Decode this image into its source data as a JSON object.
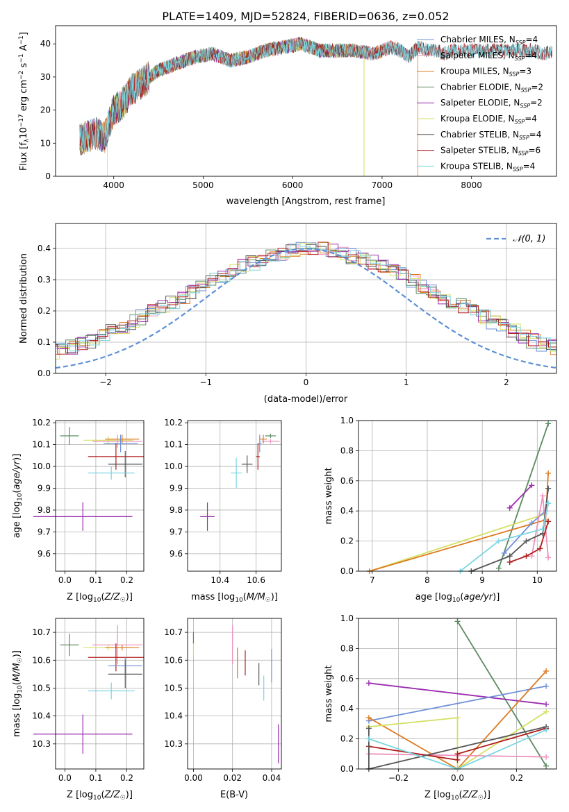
{
  "figure_title": "PLATE=1409, MJD=52824, FIBERID=0636, z=0.052",
  "colors": {
    "Chabrier MILES": "#6e8fd8",
    "Salpeter MILES": "#ee90bb",
    "Kroupa MILES": "#dd7a22",
    "Chabrier ELODIE": "#5a8a5f",
    "Salpeter ELODIE": "#9a2bb0",
    "Kroupa ELODIE": "#d4e060",
    "Chabrier STELIB": "#555555",
    "Salpeter STELIB": "#b01c1c",
    "Kroupa STELIB": "#7ad6e2",
    "normal": "#5b8fd6"
  },
  "chart_data": [
    {
      "id": "spectrum",
      "type": "line",
      "title": "PLATE=1409, MJD=52824, FIBERID=0636, z=0.052",
      "xlabel": "wavelength [Angstrom, rest frame]",
      "ylabel": "Flux [f_λ10^-17 erg cm^-2 s^-1 A^-1]",
      "xlim": [
        3350,
        8950
      ],
      "ylim": [
        0,
        45.5
      ],
      "xticks": [
        4000,
        5000,
        6000,
        7000,
        8000
      ],
      "yticks": [
        0,
        10,
        20,
        30,
        40
      ],
      "grid": false,
      "legend_position": "top-right",
      "continuum": {
        "x": [
          3620,
          3700,
          3800,
          3900,
          3950,
          4000,
          4100,
          4200,
          4300,
          4400,
          4500,
          4700,
          4900,
          5100,
          5300,
          5500,
          5700,
          5900,
          6100,
          6300,
          6500,
          6700,
          6900,
          7000,
          7100,
          7200,
          7300,
          7400,
          7500,
          7600,
          7700,
          7800,
          7900,
          8000,
          8100,
          8200,
          8300,
          8400,
          8500,
          8600,
          8700,
          8800,
          8900
        ],
        "y": [
          11,
          12,
          13,
          12,
          16,
          20,
          22,
          26,
          28,
          30,
          32,
          34,
          36,
          37,
          35,
          36,
          38,
          39,
          40,
          38,
          38,
          38,
          37,
          38,
          39,
          38,
          36,
          39,
          38,
          38,
          37,
          38,
          38,
          38,
          38,
          38,
          38,
          38,
          38,
          38,
          38,
          37,
          38
        ]
      },
      "series": [
        {
          "name": "Chabrier MILES",
          "nssp": "4",
          "xmax": 7400
        },
        {
          "name": "Salpeter MILES",
          "nssp": "4",
          "xmax": 7400
        },
        {
          "name": "Kroupa MILES",
          "nssp": "3",
          "xmax": 7400
        },
        {
          "name": "Chabrier ELODIE",
          "nssp": "2",
          "xmax": 6800
        },
        {
          "name": "Salpeter ELODIE",
          "nssp": "2",
          "xmax": 6800
        },
        {
          "name": "Kroupa ELODIE",
          "nssp": "4",
          "xmax": 6800
        },
        {
          "name": "Chabrier STELIB",
          "nssp": "4",
          "xmax": 8900
        },
        {
          "name": "Salpeter STELIB",
          "nssp": "6",
          "xmax": 8900
        },
        {
          "name": "Kroupa STELIB",
          "nssp": "4",
          "xmax": 8900
        }
      ]
    },
    {
      "id": "residuals",
      "type": "line",
      "xlabel": "(data-model)/error",
      "ylabel": "Normed distribution",
      "xlim": [
        -2.5,
        2.5
      ],
      "ylim": [
        0,
        0.48
      ],
      "xticks": [
        -2,
        -1,
        0,
        1,
        2
      ],
      "yticks": [
        0.0,
        0.1,
        0.2,
        0.3,
        0.4
      ],
      "grid": true,
      "legend_position": "top-right",
      "legend": "N(0,1)",
      "bin_width": 0.1,
      "histogram": [
        0.02,
        0.025,
        0.03,
        0.035,
        0.04,
        0.045,
        0.05,
        0.055,
        0.06,
        0.07,
        0.075,
        0.085,
        0.095,
        0.105,
        0.12,
        0.135,
        0.15,
        0.165,
        0.18,
        0.2,
        0.215,
        0.23,
        0.245,
        0.26,
        0.28,
        0.3,
        0.315,
        0.33,
        0.345,
        0.355,
        0.365,
        0.375,
        0.385,
        0.39,
        0.395,
        0.4,
        0.395,
        0.39,
        0.385,
        0.375,
        0.365,
        0.355,
        0.345,
        0.33,
        0.315,
        0.3,
        0.28,
        0.26,
        0.245,
        0.23,
        0.215,
        0.2,
        0.18,
        0.165,
        0.15,
        0.135,
        0.12,
        0.105,
        0.095,
        0.085,
        0.075,
        0.07,
        0.06,
        0.055,
        0.05,
        0.045,
        0.04,
        0.035,
        0.03,
        0.025,
        0.02
      ]
    },
    {
      "id": "age_vs_Z",
      "type": "scatter",
      "xlabel": "Z [log10(Z/Z☉)]",
      "ylabel": "age  [log10(age/yr)]",
      "xlim": [
        -0.03,
        0.255
      ],
      "ylim": [
        9.52,
        10.21
      ],
      "xticks": [
        0.0,
        0.1,
        0.2
      ],
      "yticks": [
        9.6,
        9.7,
        9.8,
        9.9,
        10.0,
        10.1,
        10.2
      ],
      "grid": true,
      "points": [
        {
          "series": "Chabrier ELODIE",
          "x": 0.015,
          "y": 10.14,
          "xerr": 0.03,
          "yerr": 0.04
        },
        {
          "series": "Kroupa ELODIE",
          "x": 0.14,
          "y": 10.12,
          "xerr": 0.08,
          "yerr": 0.02
        },
        {
          "series": "Salpeter MILES",
          "x": 0.17,
          "y": 10.115,
          "xerr": 0.08,
          "yerr": 0.03
        },
        {
          "series": "Kroupa MILES",
          "x": 0.185,
          "y": 10.125,
          "xerr": 0.055,
          "yerr": 0.02
        },
        {
          "series": "Chabrier MILES",
          "x": 0.18,
          "y": 10.105,
          "xerr": 0.055,
          "yerr": 0.04
        },
        {
          "series": "Salpeter STELIB",
          "x": 0.165,
          "y": 10.045,
          "xerr": 0.09,
          "yerr": 0.06
        },
        {
          "series": "Chabrier STELIB",
          "x": 0.195,
          "y": 10.01,
          "xerr": 0.055,
          "yerr": 0.06
        },
        {
          "series": "Kroupa STELIB",
          "x": 0.15,
          "y": 9.97,
          "xerr": 0.075,
          "yerr": 0.03
        },
        {
          "series": "Salpeter ELODIE",
          "x": 0.058,
          "y": 9.77,
          "xerr": 0.16,
          "yerr": 0.065
        }
      ]
    },
    {
      "id": "age_vs_mass",
      "type": "scatter",
      "xlabel": "mass [log10(M/M☉)]",
      "ylabel": "",
      "xlim": [
        10.22,
        10.74
      ],
      "ylim": [
        9.52,
        10.21
      ],
      "xticks": [
        10.4,
        10.6
      ],
      "yticks": [
        9.6,
        9.7,
        9.8,
        9.9,
        10.0,
        10.1,
        10.2
      ],
      "grid": true,
      "points": [
        {
          "series": "Chabrier ELODIE",
          "x": 10.68,
          "y": 10.14,
          "xerr": 0.03,
          "yerr": 0.01
        },
        {
          "series": "Salpeter MILES",
          "x": 10.68,
          "y": 10.115,
          "xerr": 0.05,
          "yerr": 0.01
        },
        {
          "series": "Kroupa MILES",
          "x": 10.64,
          "y": 10.125,
          "xerr": 0.02,
          "yerr": 0.02
        },
        {
          "series": "Chabrier MILES",
          "x": 10.62,
          "y": 10.105,
          "xerr": 0.01,
          "yerr": 0.04
        },
        {
          "series": "Salpeter STELIB",
          "x": 10.61,
          "y": 10.045,
          "xerr": 0.01,
          "yerr": 0.06
        },
        {
          "series": "Chabrier STELIB",
          "x": 10.55,
          "y": 10.01,
          "xerr": 0.03,
          "yerr": 0.04
        },
        {
          "series": "Kroupa STELIB",
          "x": 10.49,
          "y": 9.97,
          "xerr": 0.03,
          "yerr": 0.07
        },
        {
          "series": "Salpeter ELODIE",
          "x": 10.33,
          "y": 9.77,
          "xerr": 0.04,
          "yerr": 0.065
        }
      ]
    },
    {
      "id": "weight_vs_age",
      "type": "line",
      "xlabel": "age  [log10(age/yr)]",
      "ylabel": "mass weight",
      "xlim": [
        6.75,
        10.35
      ],
      "ylim": [
        0,
        1.0
      ],
      "xticks": [
        7,
        8,
        9,
        10
      ],
      "yticks": [
        0.0,
        0.2,
        0.4,
        0.6,
        0.8,
        1.0
      ],
      "grid": true,
      "series": [
        {
          "name": "Chabrier ELODIE",
          "x": [
            9.3,
            10.2
          ],
          "y": [
            0.02,
            0.98
          ]
        },
        {
          "name": "Salpeter ELODIE",
          "x": [
            9.5,
            9.9
          ],
          "y": [
            0.42,
            0.57
          ]
        },
        {
          "name": "Kroupa ELODIE",
          "x": [
            6.95,
            10.15
          ],
          "y": [
            0.0,
            0.38
          ]
        },
        {
          "name": "Kroupa MILES",
          "x": [
            6.95,
            10.15,
            10.2
          ],
          "y": [
            0.0,
            0.34,
            0.65
          ]
        },
        {
          "name": "Chabrier MILES",
          "x": [
            9.4,
            9.9,
            10.15,
            10.2
          ],
          "y": [
            0.12,
            0.32,
            0.4,
            0.55
          ]
        },
        {
          "name": "Salpeter MILES",
          "x": [
            9.9,
            10.1,
            10.2
          ],
          "y": [
            0.1,
            0.5,
            0.09
          ]
        },
        {
          "name": "Chabrier STELIB",
          "x": [
            8.8,
            9.5,
            9.8,
            10.1,
            10.2
          ],
          "y": [
            0.0,
            0.1,
            0.2,
            0.25,
            0.55
          ]
        },
        {
          "name": "Salpeter STELIB",
          "x": [
            9.5,
            9.8,
            10.05,
            10.2
          ],
          "y": [
            0.06,
            0.1,
            0.15,
            0.33
          ]
        },
        {
          "name": "Kroupa STELIB",
          "x": [
            8.6,
            9.3,
            10.1,
            10.2
          ],
          "y": [
            0.0,
            0.2,
            0.28,
            0.45
          ]
        }
      ]
    },
    {
      "id": "mass_vs_Z",
      "type": "scatter",
      "xlabel": "Z [log10(Z/Z☉)]",
      "ylabel": "mass [log10(M/M☉)]",
      "xlim": [
        -0.03,
        0.255
      ],
      "ylim": [
        10.21,
        10.75
      ],
      "xticks": [
        0.0,
        0.1,
        0.2
      ],
      "yticks": [
        10.3,
        10.4,
        10.5,
        10.6,
        10.7
      ],
      "grid": true,
      "points": [
        {
          "series": "Chabrier ELODIE",
          "x": 0.015,
          "y": 10.655,
          "xerr": 0.03,
          "yerr": 0.04
        },
        {
          "series": "Kroupa ELODIE",
          "x": 0.14,
          "y": 10.645,
          "xerr": 0.08,
          "yerr": 0.01
        },
        {
          "series": "Salpeter MILES",
          "x": 0.17,
          "y": 10.655,
          "xerr": 0.08,
          "yerr": 0.07
        },
        {
          "series": "Kroupa MILES",
          "x": 0.185,
          "y": 10.645,
          "xerr": 0.055,
          "yerr": 0.01
        },
        {
          "series": "Salpeter STELIB",
          "x": 0.165,
          "y": 10.61,
          "xerr": 0.09,
          "yerr": 0.05
        },
        {
          "series": "Chabrier MILES",
          "x": 0.195,
          "y": 10.58,
          "xerr": 0.055,
          "yerr": 0.03
        },
        {
          "series": "Chabrier STELIB",
          "x": 0.195,
          "y": 10.55,
          "xerr": 0.055,
          "yerr": 0.05
        },
        {
          "series": "Kroupa STELIB",
          "x": 0.15,
          "y": 10.49,
          "xerr": 0.075,
          "yerr": 0.03
        },
        {
          "series": "Salpeter ELODIE",
          "x": 0.058,
          "y": 10.335,
          "xerr": 0.16,
          "yerr": 0.07
        }
      ]
    },
    {
      "id": "mass_vs_ebv",
      "type": "scatter",
      "xlabel": "E(B-V)",
      "ylabel": "",
      "xlim": [
        -0.003,
        0.045
      ],
      "ylim": [
        10.21,
        10.75
      ],
      "xticks": [
        0.0,
        0.02,
        0.04
      ],
      "yticks": [
        10.3,
        10.4,
        10.5,
        10.6,
        10.7
      ],
      "grid": true,
      "points": [
        {
          "series": "Chabrier ELODIE",
          "x": 0.0,
          "y": 10.68,
          "yerr": 0.02
        },
        {
          "series": "Kroupa ELODIE",
          "x": 0.0,
          "y": 10.64,
          "yerr": 0.02
        },
        {
          "series": "Salpeter MILES",
          "x": 0.02,
          "y": 10.655,
          "yerr": 0.07
        },
        {
          "series": "Kroupa MILES",
          "x": 0.0225,
          "y": 10.59,
          "yerr": 0.055
        },
        {
          "series": "Salpeter STELIB",
          "x": 0.0265,
          "y": 10.59,
          "yerr": 0.045
        },
        {
          "series": "Chabrier STELIB",
          "x": 0.0335,
          "y": 10.55,
          "yerr": 0.04
        },
        {
          "series": "Kroupa STELIB",
          "x": 0.036,
          "y": 10.5,
          "yerr": 0.045
        },
        {
          "series": "Chabrier MILES",
          "x": 0.04,
          "y": 10.58,
          "yerr": 0.06
        },
        {
          "series": "Salpeter ELODIE",
          "x": 0.0435,
          "y": 10.3,
          "yerr": 0.07
        }
      ]
    },
    {
      "id": "weight_vs_Z",
      "type": "line",
      "xlabel": "Z [log10(Z/Z☉)]",
      "ylabel": "mass weight",
      "xlim": [
        -0.335,
        0.335
      ],
      "ylim": [
        0,
        1.0
      ],
      "xticks": [
        -0.2,
        0.0,
        0.2
      ],
      "yticks": [
        0.0,
        0.2,
        0.4,
        0.6,
        0.8,
        1.0
      ],
      "grid": true,
      "series": [
        {
          "name": "Chabrier ELODIE",
          "x": [
            0.0,
            0.3
          ],
          "y": [
            0.98,
            0.02
          ]
        },
        {
          "name": "Salpeter ELODIE",
          "x": [
            -0.3,
            0.3
          ],
          "y": [
            0.57,
            0.43
          ]
        },
        {
          "name": "Chabrier MILES",
          "x": [
            -0.3,
            0.3
          ],
          "y": [
            0.32,
            0.55
          ]
        },
        {
          "name": "Kroupa MILES",
          "x": [
            -0.3,
            0.0,
            0.3
          ],
          "y": [
            0.34,
            0.0,
            0.65
          ]
        },
        {
          "name": "Kroupa ELODIE",
          "x": [
            -0.3,
            0.0,
            0.0,
            0.3
          ],
          "y": [
            0.28,
            0.34,
            0.0,
            0.38
          ]
        },
        {
          "name": "Salpeter MILES",
          "x": [
            -0.3,
            0.0,
            0.3
          ],
          "y": [
            0.1,
            0.09,
            0.08
          ]
        },
        {
          "name": "Salpeter STELIB",
          "x": [
            -0.3,
            0.0,
            0.0,
            0.3
          ],
          "y": [
            0.15,
            0.06,
            0.1,
            0.27
          ]
        },
        {
          "name": "Chabrier STELIB",
          "x": [
            -0.3,
            -0.3,
            0.3
          ],
          "y": [
            0.27,
            0.0,
            0.28
          ]
        },
        {
          "name": "Kroupa STELIB",
          "x": [
            -0.3,
            0.0,
            0.3
          ],
          "y": [
            0.2,
            0.0,
            0.26
          ]
        }
      ]
    }
  ]
}
